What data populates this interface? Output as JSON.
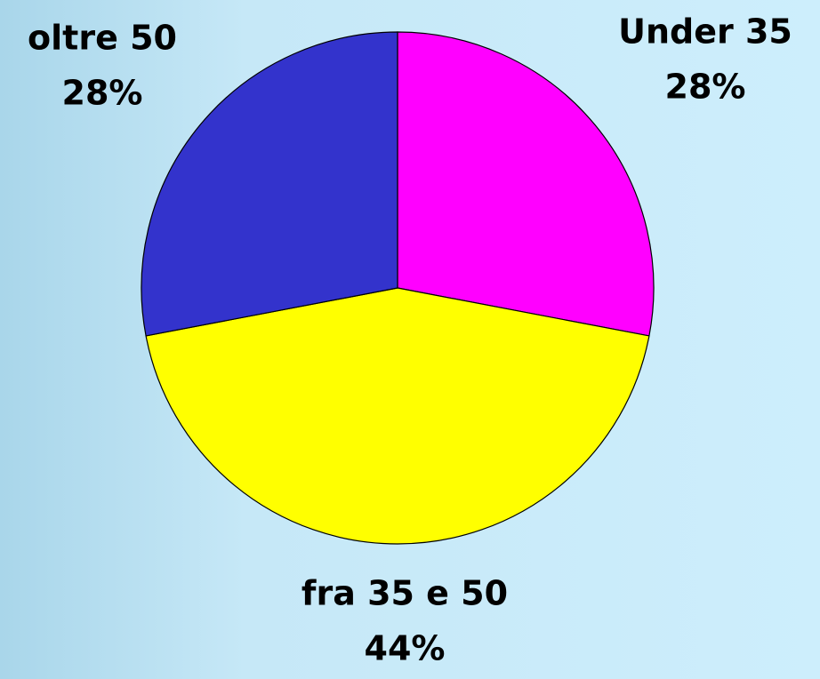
{
  "chart_data": {
    "type": "pie",
    "categories": [
      "Under 35",
      "fra 35 e 50",
      "oltre 50"
    ],
    "values": [
      28,
      44,
      28
    ],
    "value_labels": [
      "28%",
      "44%",
      "28%"
    ],
    "colors": [
      "#ff00ff",
      "#ffff00",
      "#3333cc"
    ]
  }
}
